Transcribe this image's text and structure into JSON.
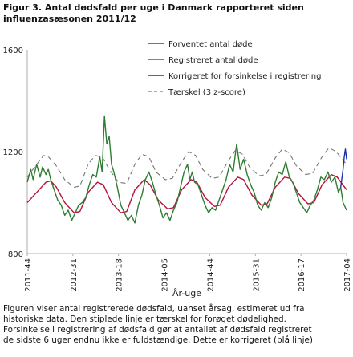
{
  "figure": {
    "title_lines": [
      "Figur 3. Antal dødsfald per uge i Danmark rapporteret siden",
      "influenzasæsonen 2011/12"
    ],
    "caption_lines": [
      "Figuren viser antal registrerede dødsfald, uanset årsag, estimeret ud fra",
      "historiske data. Den stiplede linje er tærskel for forøget dødelighed.",
      "Forsinkelse i registrering af dødsfald gør at antallet af dødsfald registreret",
      "de sidste 6 uger endnu ikke er fuldstændige. Dette er korrigeret (blå linje)."
    ]
  },
  "chart_data": {
    "type": "line",
    "xlabel": "År-uge",
    "ylabel": "",
    "ylim": [
      800,
      1600
    ],
    "yticks": [
      800,
      1200,
      1600
    ],
    "n_weeks": 274,
    "x_ticks": [
      {
        "label": "2011-44",
        "week": 0
      },
      {
        "label": "2012-31",
        "week": 39
      },
      {
        "label": "2013-18",
        "week": 78
      },
      {
        "label": "2014-05",
        "week": 117
      },
      {
        "label": "2014-44",
        "week": 156
      },
      {
        "label": "2015-31",
        "week": 195
      },
      {
        "label": "2016-17",
        "week": 234
      },
      {
        "label": "2017-04",
        "week": 273
      }
    ],
    "grid": false,
    "legend_position": "top-right",
    "series": [
      {
        "name": "Forventet antal døde",
        "color": "#b5123e",
        "style": "solid",
        "points": [
          [
            0,
            1000
          ],
          [
            8,
            1040
          ],
          [
            16,
            1080
          ],
          [
            20,
            1085
          ],
          [
            25,
            1060
          ],
          [
            32,
            1000
          ],
          [
            40,
            960
          ],
          [
            45,
            965
          ],
          [
            52,
            1040
          ],
          [
            60,
            1080
          ],
          [
            65,
            1070
          ],
          [
            72,
            1000
          ],
          [
            80,
            960
          ],
          [
            85,
            965
          ],
          [
            92,
            1050
          ],
          [
            100,
            1090
          ],
          [
            105,
            1070
          ],
          [
            112,
            1010
          ],
          [
            120,
            975
          ],
          [
            125,
            980
          ],
          [
            132,
            1050
          ],
          [
            140,
            1090
          ],
          [
            145,
            1080
          ],
          [
            152,
            1020
          ],
          [
            160,
            985
          ],
          [
            165,
            990
          ],
          [
            172,
            1060
          ],
          [
            180,
            1100
          ],
          [
            185,
            1090
          ],
          [
            192,
            1030
          ],
          [
            200,
            990
          ],
          [
            205,
            995
          ],
          [
            212,
            1060
          ],
          [
            220,
            1100
          ],
          [
            225,
            1095
          ],
          [
            232,
            1035
          ],
          [
            240,
            995
          ],
          [
            245,
            1000
          ],
          [
            252,
            1070
          ],
          [
            260,
            1110
          ],
          [
            265,
            1100
          ],
          [
            273,
            1050
          ]
        ]
      },
      {
        "name": "Registreret antal døde",
        "color": "#2e7d32",
        "style": "solid",
        "points": [
          [
            0,
            1080
          ],
          [
            3,
            1130
          ],
          [
            5,
            1090
          ],
          [
            8,
            1150
          ],
          [
            11,
            1100
          ],
          [
            13,
            1140
          ],
          [
            16,
            1110
          ],
          [
            18,
            1130
          ],
          [
            20,
            1090
          ],
          [
            23,
            1050
          ],
          [
            26,
            1010
          ],
          [
            29,
            990
          ],
          [
            32,
            950
          ],
          [
            35,
            970
          ],
          [
            38,
            930
          ],
          [
            41,
            960
          ],
          [
            44,
            990
          ],
          [
            47,
            1000
          ],
          [
            50,
            1020
          ],
          [
            53,
            1070
          ],
          [
            56,
            1110
          ],
          [
            59,
            1100
          ],
          [
            62,
            1180
          ],
          [
            64,
            1120
          ],
          [
            66,
            1340
          ],
          [
            68,
            1230
          ],
          [
            70,
            1260
          ],
          [
            72,
            1150
          ],
          [
            74,
            1120
          ],
          [
            77,
            1060
          ],
          [
            80,
            990
          ],
          [
            83,
            960
          ],
          [
            86,
            930
          ],
          [
            89,
            950
          ],
          [
            92,
            920
          ],
          [
            95,
            990
          ],
          [
            98,
            1030
          ],
          [
            101,
            1090
          ],
          [
            104,
            1120
          ],
          [
            107,
            1080
          ],
          [
            110,
            1030
          ],
          [
            113,
            990
          ],
          [
            116,
            940
          ],
          [
            119,
            960
          ],
          [
            122,
            930
          ],
          [
            125,
            970
          ],
          [
            128,
            1000
          ],
          [
            131,
            1060
          ],
          [
            134,
            1120
          ],
          [
            137,
            1150
          ],
          [
            139,
            1090
          ],
          [
            141,
            1120
          ],
          [
            143,
            1080
          ],
          [
            146,
            1070
          ],
          [
            149,
            1030
          ],
          [
            152,
            990
          ],
          [
            155,
            960
          ],
          [
            158,
            980
          ],
          [
            161,
            970
          ],
          [
            164,
            1010
          ],
          [
            167,
            1050
          ],
          [
            170,
            1090
          ],
          [
            173,
            1150
          ],
          [
            176,
            1120
          ],
          [
            179,
            1230
          ],
          [
            182,
            1130
          ],
          [
            185,
            1170
          ],
          [
            188,
            1110
          ],
          [
            191,
            1070
          ],
          [
            194,
            1040
          ],
          [
            197,
            990
          ],
          [
            200,
            970
          ],
          [
            203,
            1000
          ],
          [
            206,
            980
          ],
          [
            209,
            1020
          ],
          [
            212,
            1080
          ],
          [
            215,
            1120
          ],
          [
            218,
            1110
          ],
          [
            221,
            1160
          ],
          [
            224,
            1100
          ],
          [
            227,
            1080
          ],
          [
            230,
            1040
          ],
          [
            233,
            1000
          ],
          [
            236,
            980
          ],
          [
            239,
            960
          ],
          [
            242,
            990
          ],
          [
            245,
            1010
          ],
          [
            248,
            1050
          ],
          [
            251,
            1100
          ],
          [
            254,
            1090
          ],
          [
            257,
            1120
          ],
          [
            260,
            1080
          ],
          [
            263,
            1100
          ],
          [
            266,
            1040
          ],
          [
            268,
            1060
          ],
          [
            270,
            1000
          ],
          [
            273,
            970
          ]
        ]
      },
      {
        "name": "Korrigeret for forsinkelse i registrering",
        "color": "#1c2fa8",
        "style": "solid",
        "points": [
          [
            268,
            1060
          ],
          [
            270,
            1130
          ],
          [
            271,
            1180
          ],
          [
            272,
            1210
          ],
          [
            273,
            1170
          ]
        ]
      },
      {
        "name": "Tærskel (3 z-score)",
        "color": "#777777",
        "style": "dashed",
        "points": [
          [
            0,
            1100
          ],
          [
            8,
            1150
          ],
          [
            14,
            1185
          ],
          [
            18,
            1180
          ],
          [
            24,
            1150
          ],
          [
            32,
            1090
          ],
          [
            40,
            1060
          ],
          [
            45,
            1065
          ],
          [
            52,
            1150
          ],
          [
            58,
            1185
          ],
          [
            64,
            1180
          ],
          [
            70,
            1130
          ],
          [
            78,
            1080
          ],
          [
            85,
            1075
          ],
          [
            92,
            1150
          ],
          [
            98,
            1190
          ],
          [
            104,
            1180
          ],
          [
            110,
            1120
          ],
          [
            118,
            1090
          ],
          [
            124,
            1095
          ],
          [
            132,
            1160
          ],
          [
            138,
            1200
          ],
          [
            144,
            1185
          ],
          [
            150,
            1130
          ],
          [
            158,
            1095
          ],
          [
            164,
            1100
          ],
          [
            172,
            1165
          ],
          [
            178,
            1205
          ],
          [
            184,
            1190
          ],
          [
            190,
            1140
          ],
          [
            198,
            1105
          ],
          [
            204,
            1110
          ],
          [
            212,
            1175
          ],
          [
            218,
            1210
          ],
          [
            224,
            1195
          ],
          [
            230,
            1145
          ],
          [
            238,
            1110
          ],
          [
            244,
            1115
          ],
          [
            252,
            1180
          ],
          [
            258,
            1215
          ],
          [
            264,
            1200
          ],
          [
            273,
            1150
          ]
        ]
      }
    ]
  }
}
